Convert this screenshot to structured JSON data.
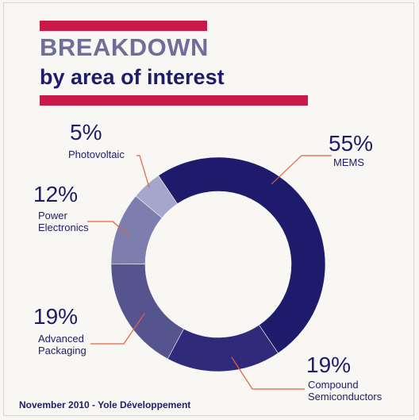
{
  "header": {
    "title_line1": "BREAKDOWN",
    "title_line2": "by area of interest"
  },
  "footer": {
    "source": "November 2010 - Yole Développement"
  },
  "chart_data": {
    "type": "pie",
    "style": "donut",
    "title": "BREAKDOWN by area of interest",
    "slices": [
      {
        "label": "MEMS",
        "label_lines": [
          "MEMS"
        ],
        "value": 55,
        "value_label": "55%",
        "color": "#1f1b6c"
      },
      {
        "label": "Compound Semiconductors",
        "label_lines": [
          "Compound",
          "Semiconductors"
        ],
        "value": 19,
        "value_label": "19%",
        "color": "#2f2b7a"
      },
      {
        "label": "Advanced Packaging",
        "label_lines": [
          "Advanced",
          "Packaging"
        ],
        "value": 19,
        "value_label": "19%",
        "color": "#55548f"
      },
      {
        "label": "Power Electronics",
        "label_lines": [
          "Power",
          "Electronics"
        ],
        "value": 12,
        "value_label": "12%",
        "color": "#7d7dae"
      },
      {
        "label": "Photovoltaic",
        "label_lines": [
          "Photovoltaic"
        ],
        "value": 5,
        "value_label": "5%",
        "color": "#a6a6cc"
      }
    ],
    "leader_color": "#e3613f"
  }
}
